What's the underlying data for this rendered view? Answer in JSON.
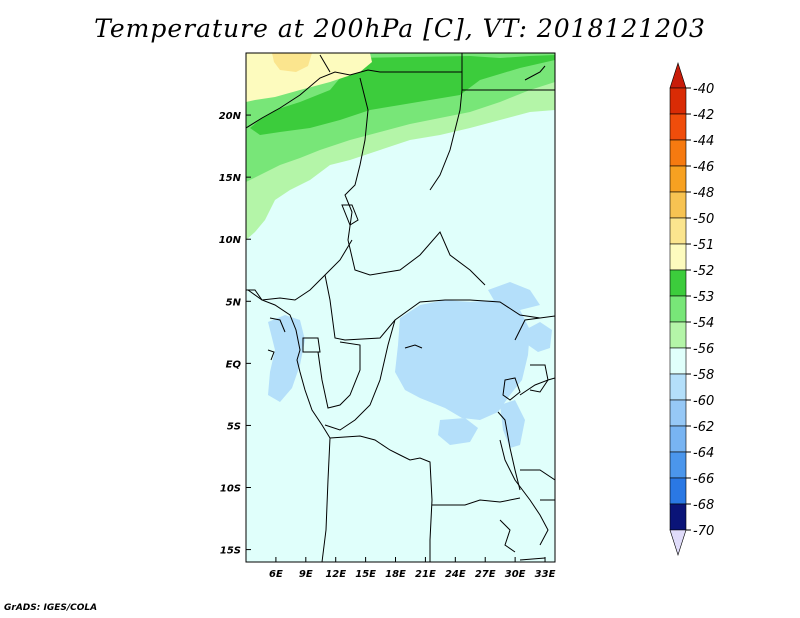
{
  "title": "Temperature at 200hPa [C], VT: 2018121203",
  "credit": "GrADS: IGES/COLA",
  "map": {
    "lon_range": [
      3,
      34
    ],
    "lat_range": [
      -16,
      25
    ],
    "lon_ticks": [
      {
        "value": 6,
        "label": "6E"
      },
      {
        "value": 9,
        "label": "9E"
      },
      {
        "value": 12,
        "label": "12E"
      },
      {
        "value": 15,
        "label": "15E"
      },
      {
        "value": 18,
        "label": "18E"
      },
      {
        "value": 21,
        "label": "21E"
      },
      {
        "value": 24,
        "label": "24E"
      },
      {
        "value": 27,
        "label": "27E"
      },
      {
        "value": 30,
        "label": "30E"
      },
      {
        "value": 33,
        "label": "33E"
      }
    ],
    "lat_ticks": [
      {
        "value": 20,
        "label": "20N"
      },
      {
        "value": 15,
        "label": "15N"
      },
      {
        "value": 10,
        "label": "10N"
      },
      {
        "value": 5,
        "label": "5N"
      },
      {
        "value": 0,
        "label": "EQ"
      },
      {
        "value": -5,
        "label": "5S"
      },
      {
        "value": -10,
        "label": "10S"
      },
      {
        "value": -15,
        "label": "15S"
      }
    ],
    "background_level": "-54 to -56"
  },
  "colorbar": {
    "levels": [
      {
        "label": "-40",
        "color": "#d92b05"
      },
      {
        "label": "-42",
        "color": "#f04d0b"
      },
      {
        "label": "-44",
        "color": "#f67a10"
      },
      {
        "label": "-46",
        "color": "#f7a121"
      },
      {
        "label": "-48",
        "color": "#f7c352"
      },
      {
        "label": "-50",
        "color": "#fbe58e"
      },
      {
        "label": "-51",
        "color": "#fdfbbe"
      },
      {
        "label": "-52",
        "color": "#3ccc3c"
      },
      {
        "label": "-53",
        "color": "#78e678"
      },
      {
        "label": "-54",
        "color": "#b4f5a8"
      },
      {
        "label": "-56",
        "color": "#e0fffb"
      },
      {
        "label": "-58",
        "color": "#b4dffa"
      },
      {
        "label": "-60",
        "color": "#96c8f6"
      },
      {
        "label": "-62",
        "color": "#78b4f2"
      },
      {
        "label": "-64",
        "color": "#4b96ec"
      },
      {
        "label": "-66",
        "color": "#2a78e4"
      },
      {
        "label": "-68",
        "color": "#1e5ad2"
      },
      {
        "label": "-70",
        "color": "#1440b4"
      }
    ],
    "top_arrow_color": "#c81c0a",
    "bottom_box_color": "#0a1478",
    "bottom_arrow_color": "#e0dcfa"
  },
  "fields": {
    "yellow": "#fdfbbe",
    "yellow_core": "#fbe58e",
    "dark_green": "#3ccc3c",
    "mid_green": "#78e678",
    "light_green": "#b4f5a8",
    "cyan": "#e0fffb",
    "blue": "#b4dffa",
    "blue_dark": "#96c8f6"
  }
}
